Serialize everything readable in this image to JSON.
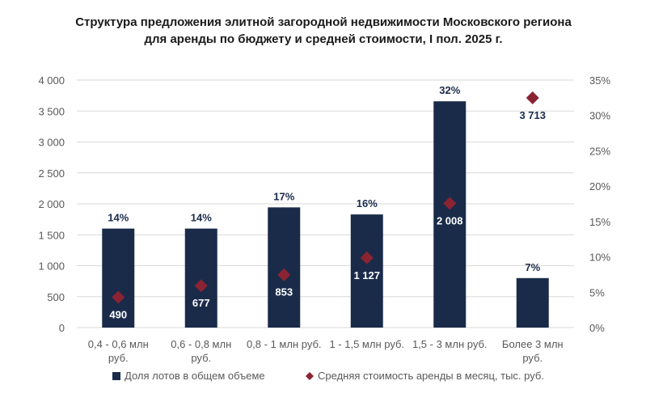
{
  "chart_data": {
    "type": "bar+scatter",
    "title": [
      "Структура предложения элитной загородной недвижимости Московского региона",
      "для аренды по бюджету и средней стоимости, I пол. 2025 г."
    ],
    "categories": [
      [
        "0,4 - 0,6 млн",
        "руб."
      ],
      [
        "0,6 - 0,8 млн",
        "руб."
      ],
      [
        "0,8 - 1 млн руб."
      ],
      [
        "1 - 1,5 млн руб."
      ],
      [
        "1,5 - 3 млн руб."
      ],
      [
        "Более 3 млн",
        "руб."
      ]
    ],
    "y2_ticks": [
      "35%",
      "30%",
      "25%",
      "20%",
      "15%",
      "10%",
      "5%",
      "0%"
    ],
    "y_ticks": [
      "4 000",
      "3 500",
      "3 000",
      "2 500",
      "2 000",
      "1 500",
      "1 000",
      "500",
      "0"
    ],
    "ylim": [
      0,
      4000
    ],
    "y2lim": [
      0,
      35
    ],
    "series": [
      {
        "name": "Доля лотов в общем объеме",
        "kind": "bar",
        "axis": "right",
        "color": "#1a2b4a",
        "values": [
          14,
          14,
          17,
          16,
          32,
          7
        ],
        "labels": [
          "14%",
          "14%",
          "17%",
          "16%",
          "32%",
          "7%"
        ]
      },
      {
        "name": "Средняя стоимость аренды в месяц, тыс. руб.",
        "kind": "scatter",
        "axis": "left",
        "color": "#8b2332",
        "values": [
          490,
          677,
          853,
          1127,
          2008,
          3713
        ],
        "labels": [
          "490",
          "677",
          "853",
          "1 127",
          "2 008",
          "3 713"
        ]
      }
    ],
    "grid": true,
    "legend_position": "bottom"
  }
}
